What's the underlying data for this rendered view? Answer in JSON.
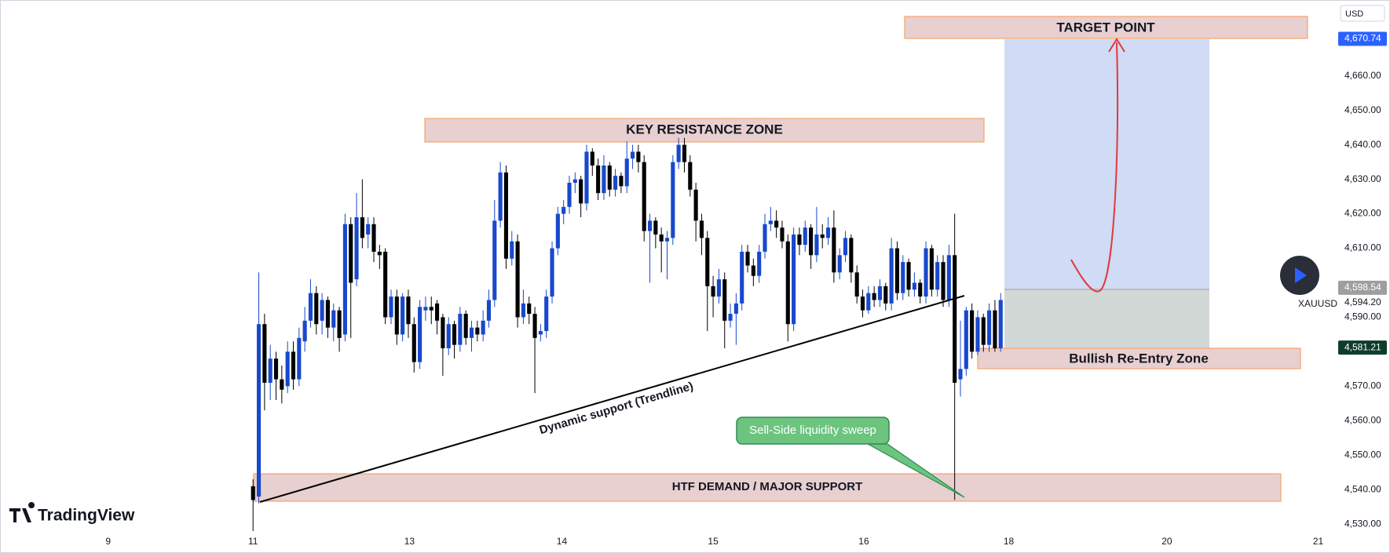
{
  "chart_data": {
    "type": "candlestick",
    "symbol": "XAUUSD",
    "currency": "USD",
    "brand": "TradingView",
    "up_color": "#1848cc",
    "down_color": "#000000",
    "x": [
      44,
      45,
      46,
      47,
      48,
      49,
      50,
      51,
      52,
      53,
      54,
      55,
      56,
      57,
      58,
      59,
      60,
      61,
      62,
      63,
      64,
      65,
      66,
      67,
      68,
      69,
      70,
      71,
      72,
      73,
      74,
      75,
      76,
      77,
      78,
      79,
      80,
      81,
      82,
      83,
      84,
      85,
      86,
      87,
      88,
      89,
      90,
      91,
      92,
      93,
      94,
      95,
      96,
      97,
      98,
      99,
      100,
      101,
      102,
      103,
      104,
      105,
      106,
      107,
      108,
      109,
      110,
      111,
      112,
      113,
      114,
      115,
      116,
      117,
      118,
      119,
      120,
      121,
      122,
      123,
      124,
      125,
      126,
      127,
      128,
      129,
      130,
      131,
      132,
      133,
      134,
      135,
      136,
      137,
      138,
      139,
      140,
      141,
      142,
      143,
      144,
      145,
      146,
      147,
      148,
      149,
      150,
      151,
      152,
      153,
      154,
      155,
      156,
      157,
      158,
      159,
      160,
      161,
      162,
      163,
      164,
      165,
      166,
      167,
      168,
      169,
      170,
      171,
      172,
      173,
      174
    ],
    "ohlc": [
      [
        4541,
        4543,
        4528,
        4537
      ],
      [
        4538,
        4603,
        4536,
        4588
      ],
      [
        4588,
        4591,
        4563,
        4571
      ],
      [
        4571,
        4582,
        4566,
        4578
      ],
      [
        4578,
        4580,
        4566,
        4572
      ],
      [
        4572,
        4576,
        4565,
        4569
      ],
      [
        4570,
        4583,
        4568,
        4580
      ],
      [
        4580,
        4583,
        4569,
        4572
      ],
      [
        4572,
        4587,
        4570,
        4584
      ],
      [
        4583,
        4593,
        4580,
        4589
      ],
      [
        4589,
        4601,
        4587,
        4597
      ],
      [
        4597,
        4599,
        4585,
        4588
      ],
      [
        4589,
        4597,
        4585,
        4595
      ],
      [
        4595,
        4596,
        4584,
        4587
      ],
      [
        4587,
        4594,
        4583,
        4592
      ],
      [
        4592,
        4593,
        4580,
        4584
      ],
      [
        4585,
        4620,
        4583,
        4617
      ],
      [
        4617,
        4619,
        4584,
        4600
      ],
      [
        4601,
        4626,
        4599,
        4619
      ],
      [
        4619,
        4630,
        4610,
        4613
      ],
      [
        4614,
        4619,
        4610,
        4617
      ],
      [
        4617,
        4619,
        4606,
        4609
      ],
      [
        4609,
        4611,
        4604,
        4608
      ],
      [
        4609,
        4610,
        4588,
        4590
      ],
      [
        4590,
        4598,
        4588,
        4596
      ],
      [
        4596,
        4598,
        4582,
        4585
      ],
      [
        4585,
        4597,
        4583,
        4596
      ],
      [
        4596,
        4598,
        4584,
        4588
      ],
      [
        4588,
        4590,
        4574,
        4577
      ],
      [
        4577,
        4595,
        4575,
        4593
      ],
      [
        4592,
        4596,
        4589,
        4593
      ],
      [
        4593,
        4596,
        4588,
        4592
      ],
      [
        4594,
        4595,
        4585,
        4589
      ],
      [
        4590,
        4591,
        4573,
        4581
      ],
      [
        4581,
        4590,
        4579,
        4588
      ],
      [
        4588,
        4589,
        4578,
        4582
      ],
      [
        4582,
        4593,
        4580,
        4591
      ],
      [
        4591,
        4592,
        4582,
        4584
      ],
      [
        4584,
        4589,
        4580,
        4587
      ],
      [
        4587,
        4589,
        4583,
        4585
      ],
      [
        4585,
        4592,
        4583,
        4589
      ],
      [
        4589,
        4598,
        4587,
        4595
      ],
      [
        4595,
        4624,
        4593,
        4618
      ],
      [
        4618,
        4635,
        4616,
        4632
      ],
      [
        4632,
        4634,
        4604,
        4607
      ],
      [
        4607,
        4615,
        4605,
        4612
      ],
      [
        4612,
        4614,
        4587,
        4590
      ],
      [
        4590,
        4598,
        4588,
        4594
      ],
      [
        4594,
        4596,
        4588,
        4591
      ],
      [
        4591,
        4593,
        4568,
        4584
      ],
      [
        4585,
        4588,
        4583,
        4586
      ],
      [
        4586,
        4598,
        4584,
        4596
      ],
      [
        4596,
        4612,
        4594,
        4610
      ],
      [
        4610,
        4622,
        4608,
        4620
      ],
      [
        4620,
        4624,
        4617,
        4622
      ],
      [
        4622,
        4631,
        4620,
        4629
      ],
      [
        4629,
        4632,
        4626,
        4630
      ],
      [
        4630,
        4631,
        4619,
        4623
      ],
      [
        4623,
        4640,
        4621,
        4638
      ],
      [
        4638,
        4639,
        4631,
        4634
      ],
      [
        4634,
        4636,
        4624,
        4626
      ],
      [
        4626,
        4637,
        4624,
        4634
      ],
      [
        4634,
        4635,
        4625,
        4627
      ],
      [
        4627,
        4633,
        4625,
        4631
      ],
      [
        4631,
        4632,
        4626,
        4628
      ],
      [
        4628,
        4641,
        4626,
        4636
      ],
      [
        4636,
        4640,
        4633,
        4638
      ],
      [
        4638,
        4640,
        4632,
        4635
      ],
      [
        4635,
        4637,
        4612,
        4615
      ],
      [
        4615,
        4620,
        4600,
        4618
      ],
      [
        4618,
        4619,
        4610,
        4614
      ],
      [
        4614,
        4616,
        4603,
        4612
      ],
      [
        4612,
        4615,
        4601,
        4613
      ],
      [
        4613,
        4637,
        4611,
        4635
      ],
      [
        4635,
        4642,
        4633,
        4640
      ],
      [
        4640,
        4642,
        4632,
        4635
      ],
      [
        4635,
        4637,
        4625,
        4627
      ],
      [
        4627,
        4629,
        4612,
        4618
      ],
      [
        4618,
        4620,
        4608,
        4613
      ],
      [
        4613,
        4615,
        4586,
        4599
      ],
      [
        4599,
        4602,
        4590,
        4596
      ],
      [
        4596,
        4604,
        4594,
        4601
      ],
      [
        4601,
        4603,
        4581,
        4589
      ],
      [
        4589,
        4594,
        4587,
        4591
      ],
      [
        4591,
        4597,
        4582,
        4594
      ],
      [
        4594,
        4611,
        4592,
        4609
      ],
      [
        4609,
        4611,
        4603,
        4605
      ],
      [
        4605,
        4607,
        4599,
        4602
      ],
      [
        4602,
        4611,
        4600,
        4609
      ],
      [
        4609,
        4620,
        4607,
        4617
      ],
      [
        4617,
        4622,
        4615,
        4618
      ],
      [
        4618,
        4621,
        4613,
        4616
      ],
      [
        4616,
        4618,
        4610,
        4612
      ],
      [
        4612,
        4614,
        4583,
        4588
      ],
      [
        4588,
        4616,
        4586,
        4614
      ],
      [
        4614,
        4616,
        4608,
        4611
      ],
      [
        4611,
        4618,
        4609,
        4616
      ],
      [
        4616,
        4617,
        4604,
        4608
      ],
      [
        4608,
        4622,
        4606,
        4614
      ],
      [
        4614,
        4617,
        4610,
        4613
      ],
      [
        4613,
        4619,
        4611,
        4616
      ],
      [
        4616,
        4621,
        4600,
        4603
      ],
      [
        4603,
        4610,
        4601,
        4608
      ],
      [
        4608,
        4615,
        4606,
        4613
      ],
      [
        4613,
        4614,
        4600,
        4603
      ],
      [
        4603,
        4605,
        4594,
        4596
      ],
      [
        4596,
        4598,
        4590,
        4592
      ],
      [
        4592,
        4599,
        4591,
        4597
      ],
      [
        4597,
        4599,
        4593,
        4595
      ],
      [
        4595,
        4601,
        4593,
        4599
      ],
      [
        4599,
        4600,
        4592,
        4594
      ],
      [
        4594,
        4613,
        4592,
        4610
      ],
      [
        4610,
        4612,
        4595,
        4597
      ],
      [
        4597,
        4608,
        4595,
        4606
      ],
      [
        4606,
        4607,
        4596,
        4598
      ],
      [
        4598,
        4603,
        4596,
        4600
      ],
      [
        4600,
        4601,
        4594,
        4596
      ],
      [
        4596,
        4612,
        4594,
        4610
      ],
      [
        4610,
        4611,
        4596,
        4598
      ],
      [
        4598,
        4608,
        4596,
        4606
      ],
      [
        4606,
        4608,
        4593,
        4595
      ],
      [
        4595,
        4611,
        4593,
        4608
      ],
      [
        4608,
        4620,
        4537,
        4571
      ],
      [
        4572,
        4589,
        4567,
        4575
      ],
      [
        4575,
        4593,
        4573,
        4592
      ],
      [
        4592,
        4594,
        4578,
        4580
      ],
      [
        4580,
        4592,
        4579,
        4590
      ],
      [
        4590,
        4591,
        4580,
        4582
      ],
      [
        4582,
        4594,
        4580,
        4592
      ],
      [
        4592,
        4595,
        4580,
        4581
      ],
      [
        4581,
        4597,
        4580,
        4595
      ]
    ],
    "xlim": [
      0,
      232
    ],
    "xticks": [
      {
        "value": 18.8,
        "label": "9"
      },
      {
        "value": 44,
        "label": "11"
      },
      {
        "value": 71.2,
        "label": "13"
      },
      {
        "value": 97.7,
        "label": "14"
      },
      {
        "value": 124,
        "label": "15"
      },
      {
        "value": 150.2,
        "label": "16"
      },
      {
        "value": 175.4,
        "label": "18"
      },
      {
        "value": 202.9,
        "label": "20"
      },
      {
        "value": 229.2,
        "label": "21"
      }
    ],
    "ylim": [
      4528,
      4682
    ],
    "yticks": [
      {
        "value": 4530,
        "label": "4,530.00"
      },
      {
        "value": 4540,
        "label": "4,540.00"
      },
      {
        "value": 4550,
        "label": "4,550.00"
      },
      {
        "value": 4560,
        "label": "4,560.00"
      },
      {
        "value": 4570,
        "label": "4,570.00"
      },
      {
        "value": 4590,
        "label": "4,590.00"
      },
      {
        "value": 4610,
        "label": "4,610.00"
      },
      {
        "value": 4620,
        "label": "4,620.00"
      },
      {
        "value": 4630,
        "label": "4,630.00"
      },
      {
        "value": 4640,
        "label": "4,640.00"
      },
      {
        "value": 4650,
        "label": "4,650.00"
      },
      {
        "value": 4660,
        "label": "4,660.00"
      }
    ],
    "grid": false,
    "price_tags": [
      {
        "value": 4670.74,
        "label": "4,670.74",
        "color": "#2962ff"
      },
      {
        "value": 4598.54,
        "label": "4,598.54",
        "color": "#9e9e9e"
      },
      {
        "value": 4594.2,
        "label": "4,594.20",
        "color": "#ffffff"
      },
      {
        "value": 4581.21,
        "label": "4,581.21",
        "color": "#0f3d2c"
      }
    ],
    "annotations": {
      "target": "TARGET POINT",
      "resistance": "KEY RESISTANCE ZONE",
      "reentry": "Bullish Re-Entry Zone",
      "demand": "HTF DEMAND / MAJOR SUPPORT",
      "trendline": "Dynamic support (Trendline)",
      "sweep": "Sell-Side liquidity sweep"
    }
  }
}
